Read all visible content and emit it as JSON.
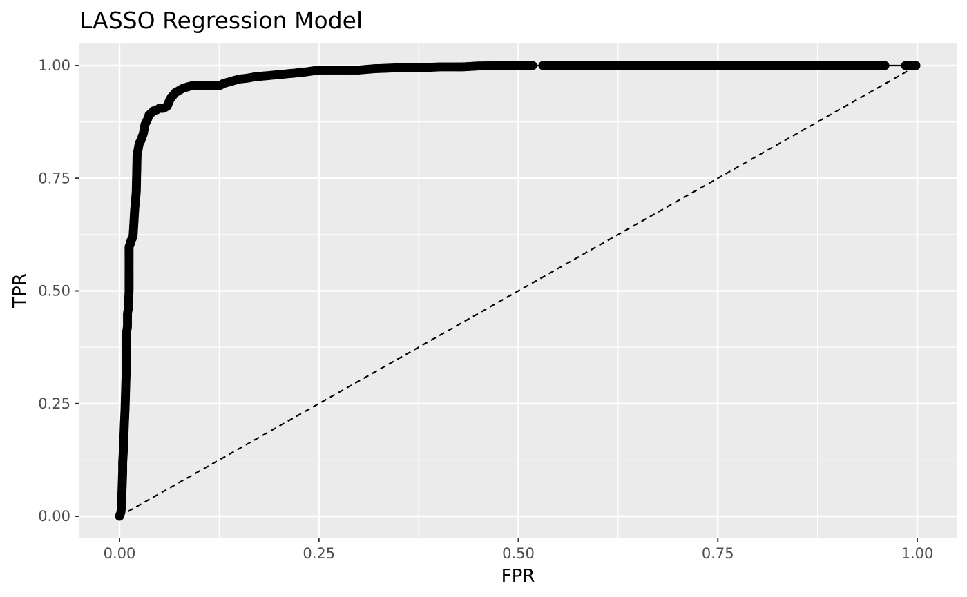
{
  "chart_data": {
    "type": "line",
    "title": "LASSO Regression Model",
    "xlabel": "FPR",
    "ylabel": "TPR",
    "xlim": [
      0,
      1
    ],
    "ylim": [
      0,
      1
    ],
    "x_ticks": [
      0,
      0.25,
      0.5,
      0.75,
      1
    ],
    "y_ticks": [
      0,
      0.25,
      0.5,
      0.75,
      1
    ],
    "x_tick_labels": [
      "0.00",
      "0.25",
      "0.50",
      "0.75",
      "1.00"
    ],
    "y_tick_labels": [
      "0.00",
      "0.25",
      "0.50",
      "0.75",
      "1.00"
    ],
    "grid": true,
    "background": "#ebebeb",
    "grid_color": "#ffffff",
    "series": [
      {
        "style": "solid-line-with-points",
        "color": "#000000",
        "x": [
          0.0,
          0.002,
          0.003,
          0.004,
          0.004,
          0.005,
          0.006,
          0.007,
          0.008,
          0.009,
          0.009,
          0.01,
          0.01,
          0.011,
          0.012,
          0.012,
          0.013,
          0.014,
          0.017,
          0.019,
          0.02,
          0.021,
          0.022,
          0.023,
          0.024,
          0.025,
          0.026,
          0.028,
          0.03,
          0.032,
          0.035,
          0.037,
          0.04,
          0.043,
          0.045,
          0.05,
          0.055,
          0.06,
          0.062,
          0.065,
          0.068,
          0.07,
          0.075,
          0.08,
          0.09,
          0.1,
          0.11,
          0.125,
          0.13,
          0.14,
          0.15,
          0.16,
          0.17,
          0.2,
          0.23,
          0.25,
          0.27,
          0.3,
          0.32,
          0.35,
          0.38,
          0.4,
          0.43,
          0.45,
          0.5,
          0.52,
          0.53,
          0.6,
          0.7,
          0.8,
          0.9,
          0.96,
          0.985,
          1.0
        ],
        "y": [
          0.0,
          0.01,
          0.05,
          0.1,
          0.12,
          0.15,
          0.2,
          0.24,
          0.3,
          0.35,
          0.41,
          0.42,
          0.45,
          0.46,
          0.5,
          0.6,
          0.6,
          0.61,
          0.62,
          0.68,
          0.7,
          0.72,
          0.8,
          0.81,
          0.82,
          0.83,
          0.83,
          0.84,
          0.85,
          0.87,
          0.88,
          0.89,
          0.895,
          0.9,
          0.9,
          0.905,
          0.905,
          0.91,
          0.92,
          0.93,
          0.935,
          0.94,
          0.945,
          0.95,
          0.955,
          0.955,
          0.955,
          0.955,
          0.96,
          0.965,
          0.97,
          0.972,
          0.975,
          0.98,
          0.985,
          0.99,
          0.99,
          0.99,
          0.993,
          0.995,
          0.995,
          0.997,
          0.997,
          0.999,
          1.0,
          1.0,
          1.0,
          1.0,
          1.0,
          1.0,
          1.0,
          1.0,
          1.0,
          1.0
        ]
      },
      {
        "style": "dashed-reference",
        "color": "#000000",
        "x": [
          0,
          1
        ],
        "y": [
          0,
          1
        ]
      }
    ]
  }
}
